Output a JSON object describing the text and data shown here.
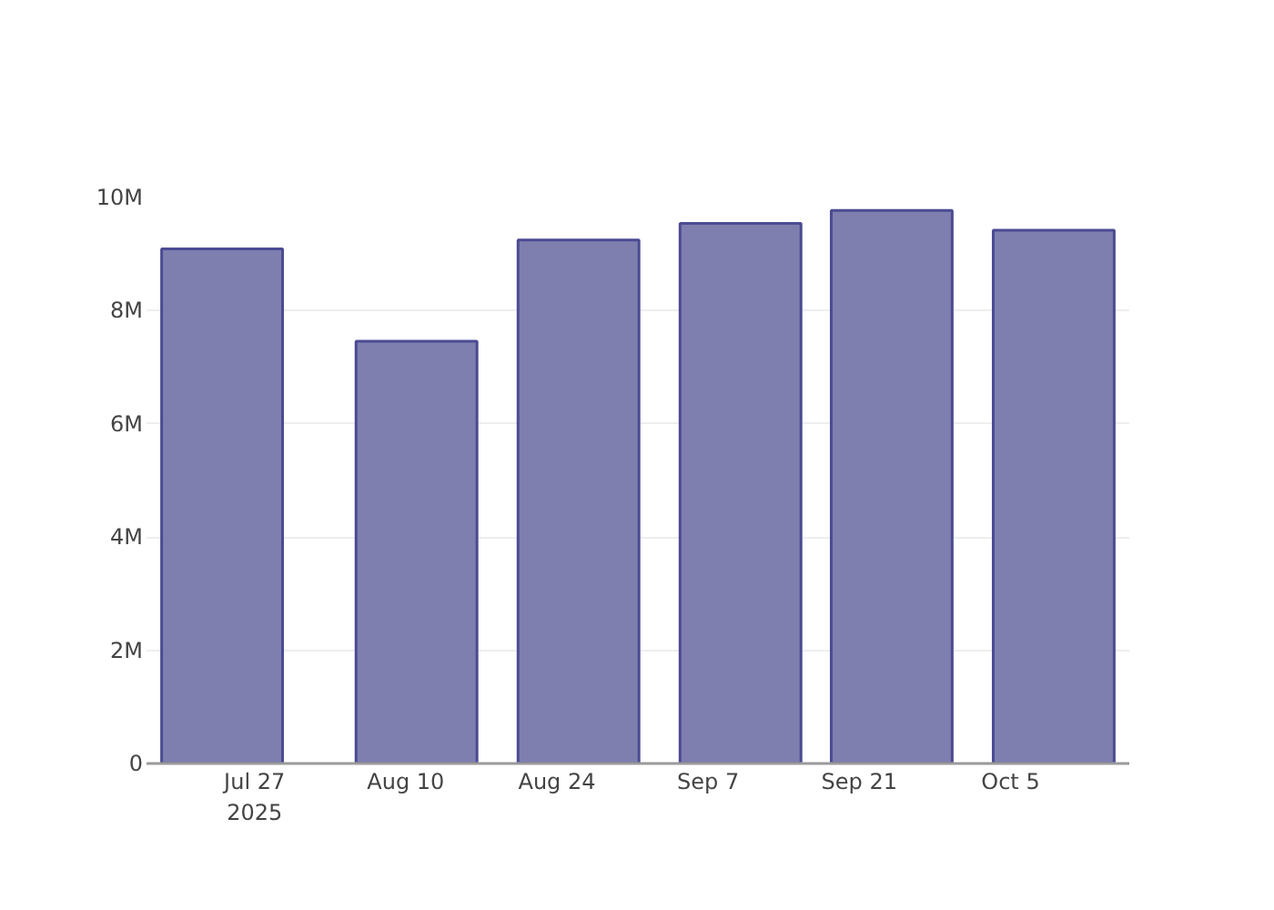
{
  "chart_data": {
    "type": "bar",
    "x": [
      "2025-07-24",
      "2025-08-11",
      "2025-08-26",
      "2025-09-10",
      "2025-09-24",
      "2025-10-09"
    ],
    "values": [
      9090000,
      7460000,
      9250000,
      9540000,
      9770000,
      9420000
    ],
    "color": "#7f7faf",
    "xlim": [
      "2025-07-17",
      "2025-10-16"
    ],
    "xticks": [
      {
        "value": "2025-07-27",
        "label": "Jul 27\n2025"
      },
      {
        "value": "2025-08-10",
        "label": "Aug 10"
      },
      {
        "value": "2025-08-24",
        "label": "Aug 24"
      },
      {
        "value": "2025-09-07",
        "label": "Sep 7"
      },
      {
        "value": "2025-09-21",
        "label": "Sep 21"
      },
      {
        "value": "2025-10-05",
        "label": "Oct 5"
      }
    ],
    "ylim": [
      0,
      10000000
    ],
    "yticks": [
      0,
      {
        "value": 2000000,
        "label": "2M"
      },
      {
        "value": 4000000,
        "label": "4M"
      },
      {
        "value": 6000000,
        "label": "6M"
      },
      {
        "value": 8000000,
        "label": "8M"
      },
      {
        "value": 10000000,
        "label": "10M"
      }
    ],
    "grid": "y"
  }
}
